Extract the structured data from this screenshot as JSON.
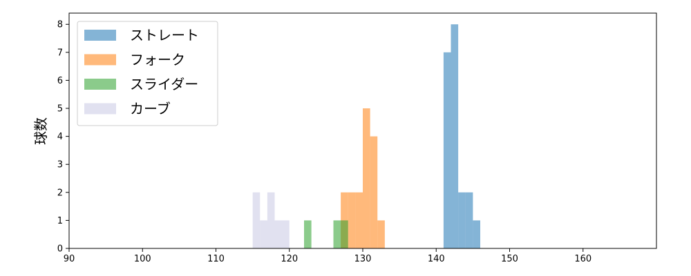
{
  "chart_data": {
    "type": "histogram",
    "ylabel": "球数",
    "xlabel": "",
    "xlim": [
      90,
      170
    ],
    "ylim": [
      0,
      8.4
    ],
    "xticks": [
      90,
      100,
      110,
      120,
      130,
      140,
      150,
      160
    ],
    "yticks": [
      0,
      1,
      2,
      3,
      4,
      5,
      6,
      7,
      8
    ],
    "grid": false,
    "legend_position": "upper-left",
    "series": [
      {
        "name": "ストレート",
        "color": "#1f77b4",
        "bins": [
          {
            "x0": 141.0,
            "x1": 142.0,
            "count": 7
          },
          {
            "x0": 142.0,
            "x1": 143.0,
            "count": 8
          },
          {
            "x0": 143.0,
            "x1": 144.0,
            "count": 2
          },
          {
            "x0": 144.0,
            "x1": 145.0,
            "count": 2
          },
          {
            "x0": 145.0,
            "x1": 146.0,
            "count": 1
          }
        ]
      },
      {
        "name": "フォーク",
        "color": "#ff7f0e",
        "bins": [
          {
            "x0": 127.0,
            "x1": 128.0,
            "count": 2
          },
          {
            "x0": 128.0,
            "x1": 129.0,
            "count": 2
          },
          {
            "x0": 129.0,
            "x1": 130.0,
            "count": 2
          },
          {
            "x0": 130.0,
            "x1": 131.0,
            "count": 5
          },
          {
            "x0": 131.0,
            "x1": 132.0,
            "count": 4
          },
          {
            "x0": 132.0,
            "x1": 133.0,
            "count": 1
          }
        ]
      },
      {
        "name": "スライダー",
        "color": "#2ca02c",
        "bins": [
          {
            "x0": 122.0,
            "x1": 123.0,
            "count": 1
          },
          {
            "x0": 126.0,
            "x1": 128.0,
            "count": 1
          }
        ]
      },
      {
        "name": "カーブ",
        "color": "#c8c8e4",
        "bins": [
          {
            "x0": 115.0,
            "x1": 116.0,
            "count": 2
          },
          {
            "x0": 116.0,
            "x1": 117.0,
            "count": 1
          },
          {
            "x0": 117.0,
            "x1": 118.0,
            "count": 2
          },
          {
            "x0": 118.0,
            "x1": 120.0,
            "count": 1
          }
        ]
      }
    ]
  }
}
